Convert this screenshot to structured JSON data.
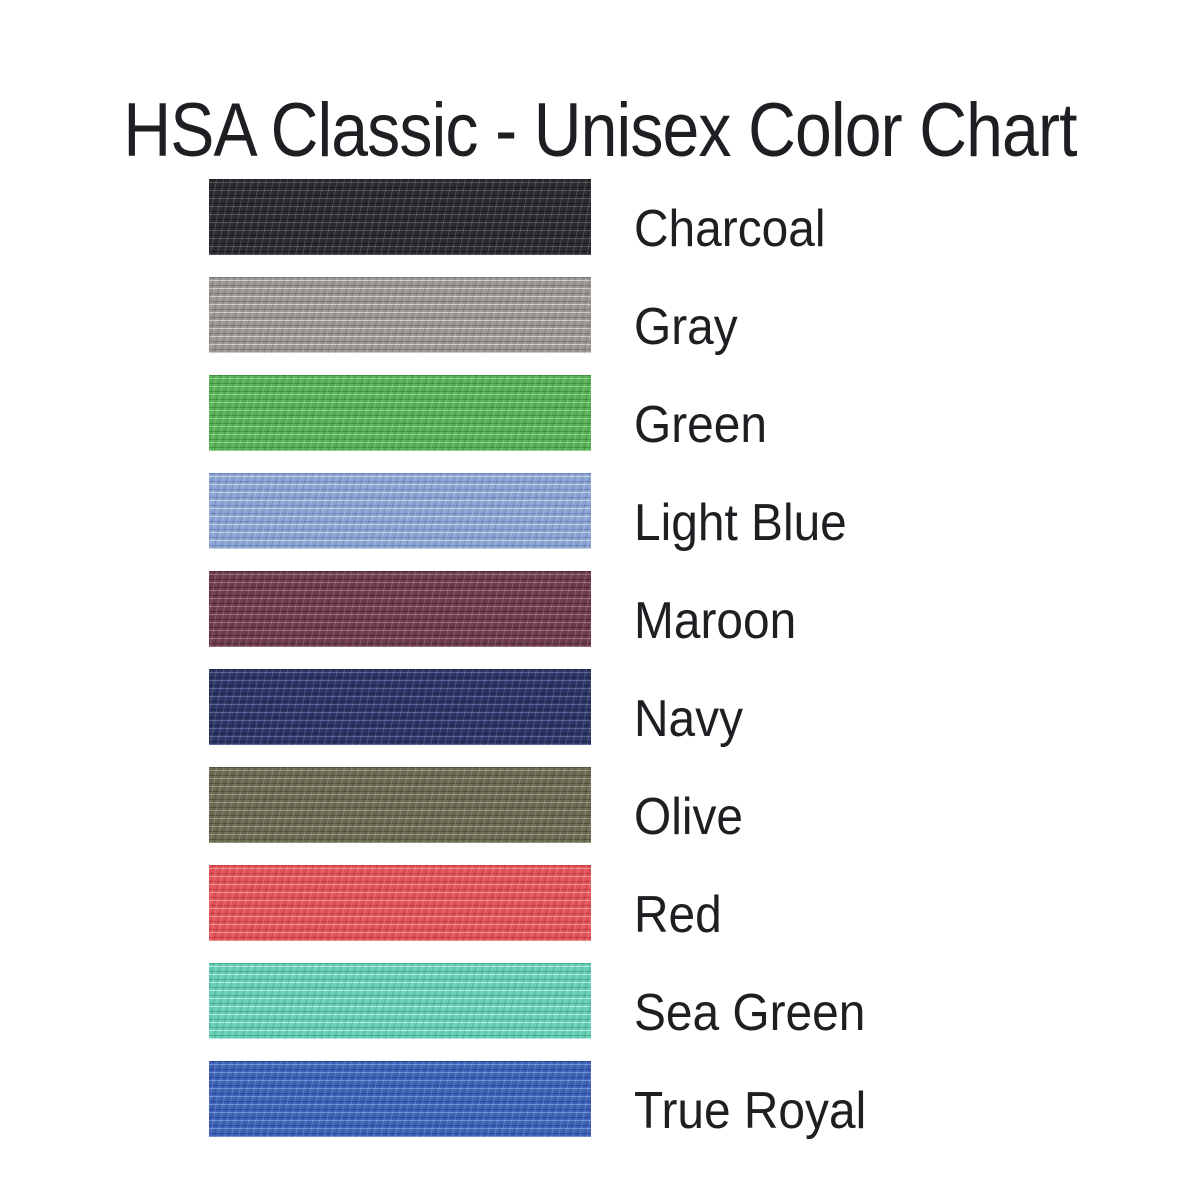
{
  "page": {
    "title": "HSA Classic - Unisex Color Chart",
    "background": "#ffffff",
    "text_color": "#1f1f23"
  },
  "chart_data": {
    "type": "table",
    "title": "HSA Classic - Unisex Color Chart",
    "columns": [
      "fabric_swatch",
      "color_name"
    ],
    "legend_position": "right-of-swatch",
    "rows": [
      {
        "name": "Charcoal",
        "base": "#2c2b2f",
        "highlight": "#4f4e55",
        "shadow": "#1a191d"
      },
      {
        "name": "Gray",
        "base": "#9c9695",
        "highlight": "#cfcac8",
        "shadow": "#7e7876"
      },
      {
        "name": "Green",
        "base": "#57b257",
        "highlight": "#90d18d",
        "shadow": "#3f9341"
      },
      {
        "name": "Light Blue",
        "base": "#8ba5d3",
        "highlight": "#c6d2ea",
        "shadow": "#6c88c2"
      },
      {
        "name": "Maroon",
        "base": "#6d3c4e",
        "highlight": "#996d7e",
        "shadow": "#532a3a"
      },
      {
        "name": "Navy",
        "base": "#2d3766",
        "highlight": "#59639a",
        "shadow": "#1c2547"
      },
      {
        "name": "Olive",
        "base": "#6c6b54",
        "highlight": "#95947c",
        "shadow": "#53523e"
      },
      {
        "name": "Red",
        "base": "#e25459",
        "highlight": "#f19294",
        "shadow": "#c73a40"
      },
      {
        "name": "Sea Green",
        "base": "#66cfb5",
        "highlight": "#b2e9dc",
        "shadow": "#47ae96"
      },
      {
        "name": "True Royal",
        "base": "#3d64b9",
        "highlight": "#7490d3",
        "shadow": "#27489a"
      }
    ]
  }
}
